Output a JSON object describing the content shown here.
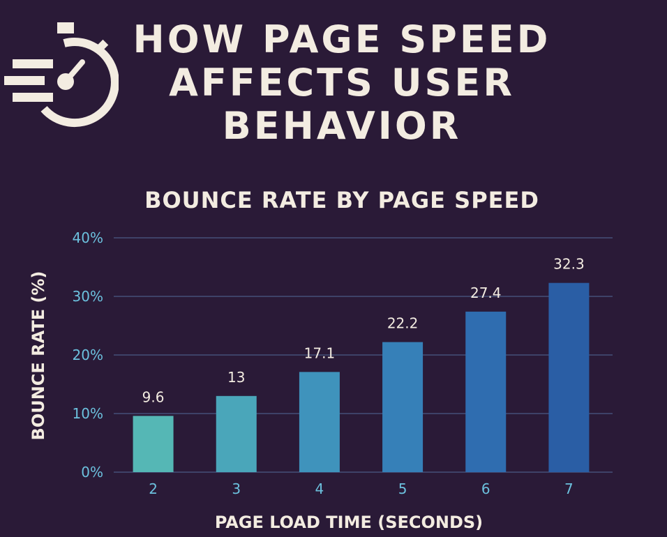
{
  "header": {
    "title": "HOW PAGE SPEED AFFECTS USER BEHAVIOR",
    "icon": "stopwatch-speed-icon"
  },
  "colors": {
    "background": "#2a1a37",
    "text": "#f3ece1",
    "axis_tick": "#6cc1de",
    "gridline": "#4a5a86",
    "bar_gradient_start": "#55b7b5",
    "bar_gradient_end": "#2a5ea5"
  },
  "chart_data": {
    "type": "bar",
    "title": "BOUNCE RATE BY PAGE SPEED",
    "xlabel": "PAGE LOAD TIME (SECONDS)",
    "ylabel": "BOUNCE RATE (%)",
    "categories": [
      "2",
      "3",
      "4",
      "5",
      "6",
      "7"
    ],
    "values": [
      9.6,
      13,
      17.1,
      22.2,
      27.4,
      32.3
    ],
    "value_labels": [
      "9.6",
      "13",
      "17.1",
      "22.2",
      "27.4",
      "32.3"
    ],
    "ylim": [
      0,
      40
    ],
    "yticks": [
      0,
      10,
      20,
      30,
      40
    ],
    "ytick_labels": [
      "0%",
      "10%",
      "20%",
      "30%",
      "40%"
    ],
    "grid": true,
    "legend": "none",
    "bar_colors": [
      "#55b7b5",
      "#4aa6ba",
      "#3f93bc",
      "#3680b8",
      "#2f6db0",
      "#2a5ea5"
    ]
  }
}
